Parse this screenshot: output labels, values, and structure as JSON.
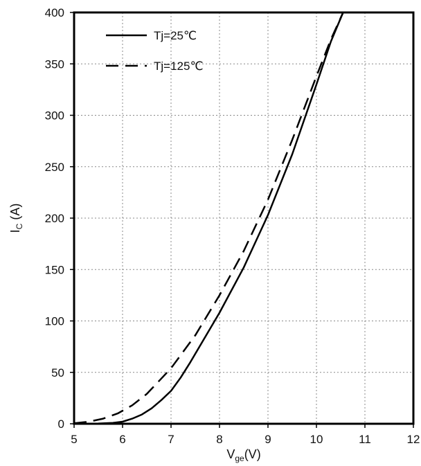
{
  "chart_data": {
    "type": "line",
    "xlabel": {
      "main": "V",
      "sub": "ge",
      "tail": "(V)"
    },
    "ylabel": {
      "main": "I",
      "sub": "C",
      "tail": " (A)"
    },
    "xlim": [
      5,
      12
    ],
    "ylim": [
      0,
      400
    ],
    "xticks": [
      5,
      6,
      7,
      8,
      9,
      10,
      11,
      12
    ],
    "yticks": [
      0,
      50,
      100,
      150,
      200,
      250,
      300,
      350,
      400
    ],
    "grid": true,
    "legend_position": "top-left",
    "series": [
      {
        "name": "Tj=25℃",
        "style": "solid",
        "color": "#000000",
        "points": [
          [
            5.0,
            0
          ],
          [
            5.5,
            0.3
          ],
          [
            5.8,
            0.8
          ],
          [
            6.0,
            2
          ],
          [
            6.2,
            5
          ],
          [
            6.4,
            9
          ],
          [
            6.6,
            15
          ],
          [
            6.8,
            23
          ],
          [
            7.0,
            32
          ],
          [
            7.2,
            45
          ],
          [
            7.4,
            60
          ],
          [
            7.6,
            76
          ],
          [
            7.8,
            92
          ],
          [
            8.0,
            108
          ],
          [
            8.5,
            152
          ],
          [
            9.0,
            203
          ],
          [
            9.5,
            262
          ],
          [
            10.0,
            330
          ],
          [
            10.3,
            372
          ],
          [
            10.55,
            400
          ]
        ]
      },
      {
        "name": "Tj=125℃",
        "style": "dashed",
        "color": "#000000",
        "points": [
          [
            5.0,
            0.5
          ],
          [
            5.3,
            2
          ],
          [
            5.6,
            5
          ],
          [
            5.9,
            10
          ],
          [
            6.2,
            18
          ],
          [
            6.5,
            29
          ],
          [
            6.8,
            44
          ],
          [
            7.0,
            54
          ],
          [
            7.5,
            86
          ],
          [
            8.0,
            125
          ],
          [
            8.5,
            168
          ],
          [
            9.0,
            218
          ],
          [
            9.5,
            276
          ],
          [
            10.0,
            338
          ],
          [
            10.3,
            374
          ],
          [
            10.55,
            400
          ]
        ]
      }
    ]
  }
}
